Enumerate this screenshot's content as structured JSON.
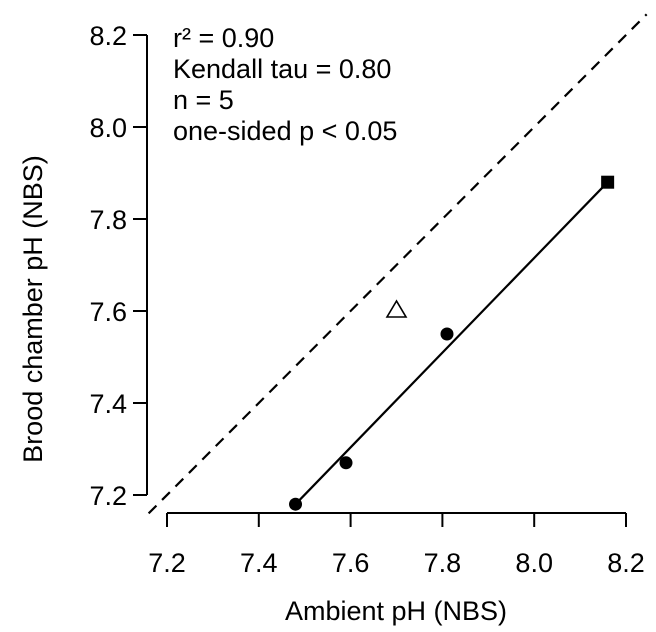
{
  "chart_data": {
    "type": "scatter",
    "title": "",
    "xlabel": "Ambient pH (NBS)",
    "ylabel": "Brood chamber pH (NBS)",
    "xlim": [
      7.2,
      8.2
    ],
    "ylim": [
      7.2,
      8.2
    ],
    "xticks": [
      7.2,
      7.4,
      7.6,
      7.8,
      8.0,
      8.2
    ],
    "yticks": [
      7.2,
      7.4,
      7.6,
      7.8,
      8.0,
      8.2
    ],
    "xtick_labels": [
      "7.2",
      "7.4",
      "7.6",
      "7.8",
      "8.0",
      "8.2"
    ],
    "ytick_labels": [
      "7.2",
      "7.4",
      "7.6",
      "7.8",
      "8.0",
      "8.2"
    ],
    "grid": false,
    "annotations": [
      "r² = 0.90",
      "Kendall tau = 0.80",
      "n = 5",
      "one-sided p < 0.05"
    ],
    "points": [
      {
        "x": 7.48,
        "y": 7.18,
        "marker": "circle"
      },
      {
        "x": 7.59,
        "y": 7.27,
        "marker": "circle"
      },
      {
        "x": 7.81,
        "y": 7.55,
        "marker": "circle"
      },
      {
        "x": 8.16,
        "y": 7.88,
        "marker": "square"
      },
      {
        "x": 7.7,
        "y": 7.6,
        "marker": "open-triangle"
      }
    ],
    "regression_line": {
      "x": [
        7.48,
        8.16
      ],
      "y": [
        7.18,
        7.88
      ],
      "style": "solid"
    },
    "reference_line": {
      "x": [
        7.16,
        8.245
      ],
      "y": [
        7.16,
        8.245
      ],
      "style": "dashed",
      "meaning": "1:1"
    }
  }
}
